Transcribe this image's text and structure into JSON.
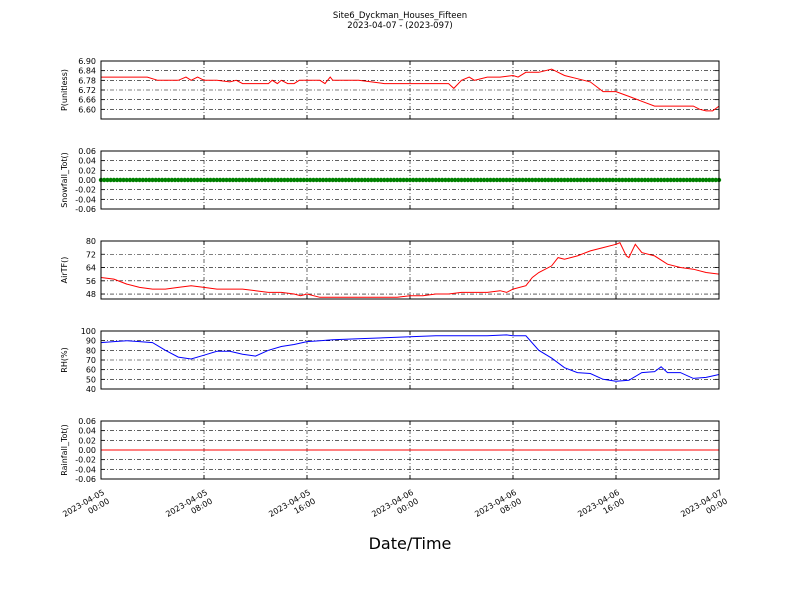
{
  "figure": {
    "title_line1": "Site6_Dyckman_Houses_Fifteen",
    "title_line2": "2023-04-07 - (2023-097)",
    "x_axis_title": "Date/Time",
    "x_tick_labels": [
      [
        "2023-04-05",
        "00:00"
      ],
      [
        "2023-04-05",
        "08:00"
      ],
      [
        "2023-04-05",
        "16:00"
      ],
      [
        "2023-04-06",
        "00:00"
      ],
      [
        "2023-04-06",
        "08:00"
      ],
      [
        "2023-04-06",
        "16:00"
      ],
      [
        "2023-04-07",
        "00:00"
      ]
    ],
    "x_range_hours": [
      0,
      48
    ],
    "x_tick_hours": [
      0,
      8,
      16,
      24,
      32,
      40,
      48
    ]
  },
  "chart_data": [
    {
      "type": "line",
      "ylabel": "P(unitless)",
      "ylim": [
        6.54,
        6.9
      ],
      "yticks": [
        6.6,
        6.66,
        6.72,
        6.78,
        6.84,
        6.9
      ],
      "ytick_labels": [
        "6.60",
        "6.66",
        "6.72",
        "6.78",
        "6.84",
        "6.90"
      ],
      "color": "#ff0000",
      "grid": true,
      "x_hours": [
        0,
        1,
        2,
        3,
        3.6,
        4.4,
        5,
        6,
        6.6,
        7,
        7.5,
        8,
        9,
        10,
        10.5,
        11,
        12,
        13,
        13.3,
        13.7,
        14,
        14.5,
        15,
        15.4,
        16,
        17,
        17.4,
        17.8,
        18,
        19,
        20,
        21,
        22,
        23,
        24,
        25,
        26,
        27,
        27.4,
        28,
        28.6,
        29,
        30,
        31,
        32,
        32.4,
        33,
        34,
        35,
        36,
        37,
        38,
        39,
        40,
        41,
        42,
        43,
        44,
        45,
        46,
        46.5,
        47,
        47.5,
        48
      ],
      "y": [
        6.8,
        6.8,
        6.8,
        6.8,
        6.8,
        6.78,
        6.78,
        6.78,
        6.8,
        6.78,
        6.8,
        6.78,
        6.78,
        6.77,
        6.78,
        6.76,
        6.76,
        6.76,
        6.78,
        6.76,
        6.78,
        6.76,
        6.76,
        6.78,
        6.78,
        6.78,
        6.76,
        6.8,
        6.78,
        6.78,
        6.78,
        6.77,
        6.76,
        6.76,
        6.76,
        6.76,
        6.76,
        6.76,
        6.73,
        6.78,
        6.8,
        6.78,
        6.8,
        6.8,
        6.81,
        6.8,
        6.83,
        6.83,
        6.85,
        6.81,
        6.79,
        6.77,
        6.71,
        6.71,
        6.68,
        6.65,
        6.62,
        6.62,
        6.62,
        6.62,
        6.6,
        6.59,
        6.59,
        6.62
      ]
    },
    {
      "type": "scatter",
      "ylabel": "Snowfall_Tot()",
      "ylim": [
        -0.06,
        0.06
      ],
      "yticks": [
        -0.06,
        -0.04,
        -0.02,
        0.0,
        0.02,
        0.04,
        0.06
      ],
      "ytick_labels": [
        "-0.06",
        "-0.04",
        "-0.02",
        "0.00",
        "0.02",
        "0.04",
        "0.06"
      ],
      "color": "#008000",
      "grid": true,
      "constant_value": 0.0
    },
    {
      "type": "line",
      "ylabel": "AirTF()",
      "ylim": [
        45,
        80
      ],
      "yticks": [
        48,
        56,
        64,
        72,
        80
      ],
      "ytick_labels": [
        "48",
        "56",
        "64",
        "72",
        "80"
      ],
      "color": "#ff0000",
      "grid": true,
      "x_hours": [
        0,
        1,
        2,
        3,
        4,
        5,
        6,
        7,
        8,
        9,
        10,
        11,
        12,
        13,
        14,
        15,
        15.5,
        16,
        17,
        18,
        19,
        20,
        21,
        22,
        23,
        24,
        25,
        26,
        27,
        28,
        29,
        30,
        31,
        31.5,
        32,
        33,
        33.5,
        34,
        35,
        35.5,
        36,
        37,
        38,
        39,
        40,
        40.3,
        40.8,
        41,
        41.5,
        42,
        43,
        44,
        45,
        46,
        47,
        48
      ],
      "y": [
        58,
        57,
        54,
        52,
        51,
        51,
        52,
        53,
        52,
        51,
        51,
        51,
        50,
        49,
        49,
        48,
        47,
        48,
        46,
        46,
        46,
        46,
        46,
        46,
        46,
        47,
        47,
        48,
        48,
        49,
        49,
        49,
        50,
        49,
        51,
        53,
        58,
        61,
        65,
        70,
        69,
        71,
        74,
        76,
        78,
        79,
        71,
        70,
        78,
        73,
        71,
        66,
        64,
        63,
        61,
        60
      ]
    },
    {
      "type": "line",
      "ylabel": "RH(%)",
      "ylim": [
        40,
        100
      ],
      "yticks": [
        40,
        50,
        60,
        70,
        80,
        90,
        100
      ],
      "ytick_labels": [
        "40",
        "50",
        "60",
        "70",
        "80",
        "90",
        "100"
      ],
      "color": "#0000ff",
      "grid": true,
      "x_hours": [
        0,
        1,
        2,
        3,
        4,
        5,
        6,
        7,
        8,
        9,
        10,
        11,
        12,
        13,
        14,
        15,
        16,
        17,
        18,
        20,
        22,
        24,
        26,
        28,
        30,
        31.5,
        32,
        33,
        34,
        35,
        36,
        37,
        38,
        39,
        40,
        41,
        42,
        43,
        43.5,
        44,
        45,
        46,
        47,
        48
      ],
      "y": [
        88,
        89,
        90,
        89,
        88,
        80,
        73,
        71,
        75,
        79,
        79,
        76,
        74,
        80,
        84,
        86,
        89,
        90,
        91,
        92,
        93,
        94,
        95,
        95,
        95,
        96,
        95,
        95,
        80,
        72,
        62,
        57,
        56,
        50,
        48,
        49,
        57,
        58,
        63,
        57,
        57,
        51,
        52,
        55
      ]
    },
    {
      "type": "line",
      "ylabel": "Rainfall_Tot()",
      "ylim": [
        -0.06,
        0.06
      ],
      "yticks": [
        -0.06,
        -0.04,
        -0.02,
        0.0,
        0.02,
        0.04,
        0.06
      ],
      "ytick_labels": [
        "-0.06",
        "-0.04",
        "-0.02",
        "0.00",
        "0.02",
        "0.04",
        "0.06"
      ],
      "color": "#ff0000",
      "grid": true,
      "constant_value": 0.0
    }
  ]
}
